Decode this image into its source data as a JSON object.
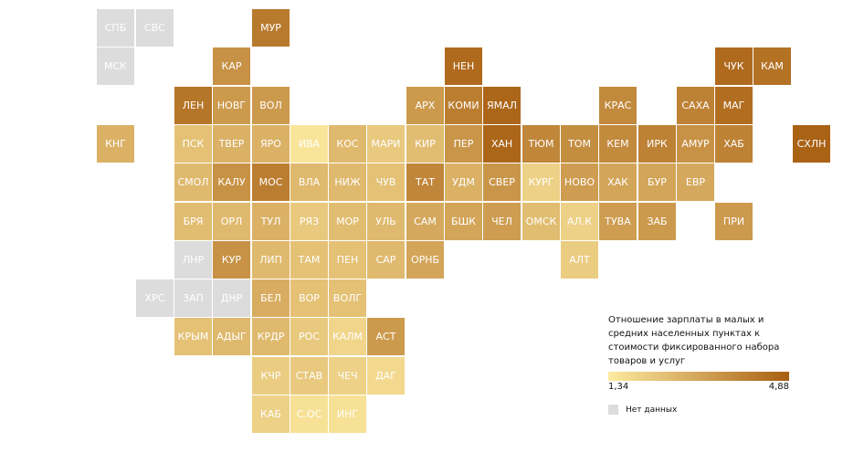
{
  "legend": {
    "title": "Отношение зарплаты в малых и средних населенных пунктах к стоимости фиксированного набора товаров и услуг",
    "min_label": "1,34",
    "max_label": "4,88",
    "min_value": 1.34,
    "max_value": 4.88,
    "color_low": "#FDEBA0",
    "color_high": "#A85F12",
    "no_data_label": "Нет данных",
    "no_data_color": "#DCDCDC"
  },
  "regions": [
    {
      "label": "СПБ",
      "row": 0,
      "col": 1,
      "value": null
    },
    {
      "label": "СВС",
      "row": 0,
      "col": 2,
      "value": null
    },
    {
      "label": "МУР",
      "row": 0,
      "col": 5,
      "value": 4.2
    },
    {
      "label": "МСК",
      "row": 1,
      "col": 1,
      "value": null
    },
    {
      "label": "КАР",
      "row": 1,
      "col": 4,
      "value": 3.6
    },
    {
      "label": "НЕН",
      "row": 1,
      "col": 10,
      "value": 4.6
    },
    {
      "label": "ЧУК",
      "row": 1,
      "col": 17,
      "value": 4.6
    },
    {
      "label": "КАМ",
      "row": 1,
      "col": 18,
      "value": 4.4
    },
    {
      "label": "ЛЕН",
      "row": 2,
      "col": 3,
      "value": 4.3
    },
    {
      "label": "НОВГ",
      "row": 2,
      "col": 4,
      "value": 3.4
    },
    {
      "label": "ВОЛ",
      "row": 2,
      "col": 5,
      "value": 3.4
    },
    {
      "label": "АРХ",
      "row": 2,
      "col": 9,
      "value": 3.4
    },
    {
      "label": "КОМИ",
      "row": 2,
      "col": 10,
      "value": 4.1
    },
    {
      "label": "ЯМАЛ",
      "row": 2,
      "col": 11,
      "value": 4.7
    },
    {
      "label": "КРАС",
      "row": 2,
      "col": 14,
      "value": 3.8
    },
    {
      "label": "САХА",
      "row": 2,
      "col": 16,
      "value": 4.0
    },
    {
      "label": "МАГ",
      "row": 2,
      "col": 17,
      "value": 4.5
    },
    {
      "label": "КНГ",
      "row": 3,
      "col": 1,
      "value": 2.8
    },
    {
      "label": "ПСК",
      "row": 3,
      "col": 3,
      "value": 2.4
    },
    {
      "label": "ТВЕР",
      "row": 3,
      "col": 4,
      "value": 2.8
    },
    {
      "label": "ЯРО",
      "row": 3,
      "col": 5,
      "value": 2.8
    },
    {
      "label": "ИВА",
      "row": 3,
      "col": 6,
      "value": 1.5
    },
    {
      "label": "КОС",
      "row": 3,
      "col": 7,
      "value": 2.6
    },
    {
      "label": "МАРИ",
      "row": 3,
      "col": 8,
      "value": 2.2
    },
    {
      "label": "КИР",
      "row": 3,
      "col": 9,
      "value": 2.5
    },
    {
      "label": "ПЕР",
      "row": 3,
      "col": 10,
      "value": 3.5
    },
    {
      "label": "ХАН",
      "row": 3,
      "col": 11,
      "value": 4.7
    },
    {
      "label": "ТЮМ",
      "row": 3,
      "col": 12,
      "value": 3.9
    },
    {
      "label": "ТОМ",
      "row": 3,
      "col": 13,
      "value": 3.7
    },
    {
      "label": "КЕМ",
      "row": 3,
      "col": 14,
      "value": 3.8
    },
    {
      "label": "ИРК",
      "row": 3,
      "col": 15,
      "value": 4.0
    },
    {
      "label": "АМУР",
      "row": 3,
      "col": 16,
      "value": 3.6
    },
    {
      "label": "ХАБ",
      "row": 3,
      "col": 17,
      "value": 4.0
    },
    {
      "label": "СХЛН",
      "row": 3,
      "col": 19,
      "value": 4.8
    },
    {
      "label": "СМОЛ",
      "row": 4,
      "col": 3,
      "value": 2.6
    },
    {
      "label": "КАЛУ",
      "row": 4,
      "col": 4,
      "value": 3.6
    },
    {
      "label": "МОС",
      "row": 4,
      "col": 5,
      "value": 4.1
    },
    {
      "label": "ВЛА",
      "row": 4,
      "col": 6,
      "value": 2.6
    },
    {
      "label": "НИЖ",
      "row": 4,
      "col": 7,
      "value": 2.6
    },
    {
      "label": "ЧУВ",
      "row": 4,
      "col": 8,
      "value": 2.4
    },
    {
      "label": "ТАТ",
      "row": 4,
      "col": 9,
      "value": 3.9
    },
    {
      "label": "УДМ",
      "row": 4,
      "col": 10,
      "value": 2.8
    },
    {
      "label": "СВЕР",
      "row": 4,
      "col": 11,
      "value": 3.5
    },
    {
      "label": "КУРГ",
      "row": 4,
      "col": 12,
      "value": 2.0
    },
    {
      "label": "НОВО",
      "row": 4,
      "col": 13,
      "value": 3.3
    },
    {
      "label": "ХАК",
      "row": 4,
      "col": 14,
      "value": 3.1
    },
    {
      "label": "БУР",
      "row": 4,
      "col": 15,
      "value": 3.1
    },
    {
      "label": "ЕВР",
      "row": 4,
      "col": 16,
      "value": 3.0
    },
    {
      "label": "БРЯ",
      "row": 5,
      "col": 3,
      "value": 2.5
    },
    {
      "label": "ОРЛ",
      "row": 5,
      "col": 4,
      "value": 2.6
    },
    {
      "label": "ТУЛ",
      "row": 5,
      "col": 5,
      "value": 2.8
    },
    {
      "label": "РЯЗ",
      "row": 5,
      "col": 6,
      "value": 2.2
    },
    {
      "label": "МОР",
      "row": 5,
      "col": 7,
      "value": 2.5
    },
    {
      "label": "УЛЬ",
      "row": 5,
      "col": 8,
      "value": 2.6
    },
    {
      "label": "САМ",
      "row": 5,
      "col": 9,
      "value": 3.0
    },
    {
      "label": "БШК",
      "row": 5,
      "col": 10,
      "value": 3.1
    },
    {
      "label": "ЧЕЛ",
      "row": 5,
      "col": 11,
      "value": 3.3
    },
    {
      "label": "ОМСК",
      "row": 5,
      "col": 12,
      "value": 2.5
    },
    {
      "label": "АЛ.К",
      "row": 5,
      "col": 13,
      "value": 2.0
    },
    {
      "label": "ТУВА",
      "row": 5,
      "col": 14,
      "value": 3.3
    },
    {
      "label": "ЗАБ",
      "row": 5,
      "col": 15,
      "value": 3.4
    },
    {
      "label": "ПРИ",
      "row": 5,
      "col": 17,
      "value": 3.4
    },
    {
      "label": "ЛНР",
      "row": 6,
      "col": 3,
      "value": null
    },
    {
      "label": "КУР",
      "row": 6,
      "col": 4,
      "value": 3.6
    },
    {
      "label": "ЛИП",
      "row": 6,
      "col": 5,
      "value": 2.6
    },
    {
      "label": "ТАМ",
      "row": 6,
      "col": 6,
      "value": 2.4
    },
    {
      "label": "ПЕН",
      "row": 6,
      "col": 7,
      "value": 2.4
    },
    {
      "label": "САР",
      "row": 6,
      "col": 8,
      "value": 2.6
    },
    {
      "label": "ОРНБ",
      "row": 6,
      "col": 9,
      "value": 3.1
    },
    {
      "label": "АЛТ",
      "row": 6,
      "col": 13,
      "value": 2.1
    },
    {
      "label": "ХРС",
      "row": 7,
      "col": 2,
      "value": null
    },
    {
      "label": "ЗАП",
      "row": 7,
      "col": 3,
      "value": null
    },
    {
      "label": "ДНР",
      "row": 7,
      "col": 4,
      "value": null
    },
    {
      "label": "БЕЛ",
      "row": 7,
      "col": 5,
      "value": 2.9
    },
    {
      "label": "ВОР",
      "row": 7,
      "col": 6,
      "value": 2.4
    },
    {
      "label": "ВОЛГ",
      "row": 7,
      "col": 7,
      "value": 2.4
    },
    {
      "label": "КРЫМ",
      "row": 8,
      "col": 3,
      "value": 2.4
    },
    {
      "label": "АДЫГ",
      "row": 8,
      "col": 4,
      "value": 2.6
    },
    {
      "label": "КРДР",
      "row": 8,
      "col": 5,
      "value": 2.6
    },
    {
      "label": "РОС",
      "row": 8,
      "col": 6,
      "value": 2.2
    },
    {
      "label": "КАЛМ",
      "row": 8,
      "col": 7,
      "value": 1.9
    },
    {
      "label": "АСТ",
      "row": 8,
      "col": 8,
      "value": 3.4
    },
    {
      "label": "КЧР",
      "row": 9,
      "col": 5,
      "value": 2.1
    },
    {
      "label": "СТАВ",
      "row": 9,
      "col": 6,
      "value": 2.2
    },
    {
      "label": "ЧЕЧ",
      "row": 9,
      "col": 7,
      "value": 2.0
    },
    {
      "label": "ДАГ",
      "row": 9,
      "col": 8,
      "value": 1.8
    },
    {
      "label": "КАБ",
      "row": 10,
      "col": 5,
      "value": 2.0
    },
    {
      "label": "С.ОС",
      "row": 10,
      "col": 6,
      "value": 1.6
    },
    {
      "label": "ИНГ",
      "row": 10,
      "col": 7,
      "value": 1.6
    }
  ]
}
